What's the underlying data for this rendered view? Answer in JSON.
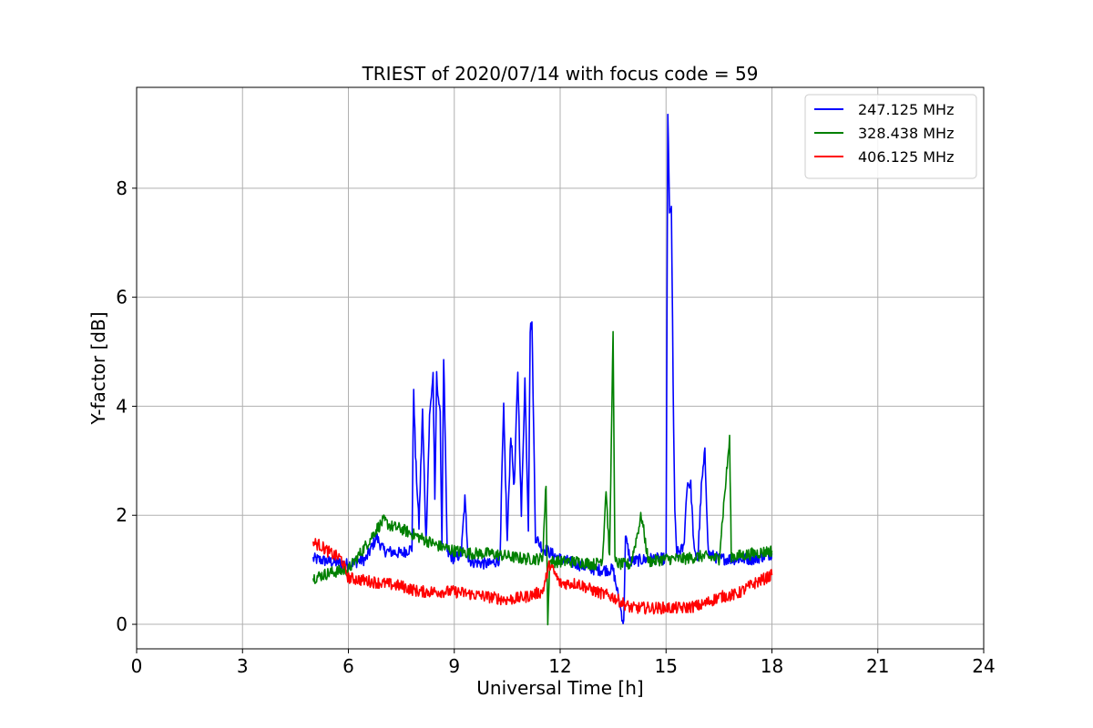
{
  "chart_data": {
    "type": "line",
    "title": "TRIEST of 2020/07/14 with focus code = 59",
    "xlabel": "Universal Time [h]",
    "ylabel": "Y-factor [dB]",
    "xlim": [
      0,
      24
    ],
    "ylim": [
      -0.45,
      9.85
    ],
    "x_ticks": [
      0,
      3,
      6,
      9,
      12,
      15,
      18,
      21,
      24
    ],
    "y_ticks": [
      0,
      2,
      4,
      6,
      8
    ],
    "grid": true,
    "legend_position": "top-right",
    "series": [
      {
        "name": "247.125 MHz",
        "color": "#0000ff",
        "x": [
          5.0,
          5.5,
          6.0,
          6.5,
          6.8,
          7.0,
          7.5,
          7.8,
          7.85,
          7.9,
          8.0,
          8.1,
          8.2,
          8.3,
          8.4,
          8.45,
          8.5,
          8.6,
          8.65,
          8.7,
          8.8,
          9.0,
          9.2,
          9.3,
          9.4,
          9.5,
          10.0,
          10.3,
          10.35,
          10.4,
          10.5,
          10.6,
          10.7,
          10.8,
          10.9,
          11.0,
          11.1,
          11.15,
          11.2,
          11.3,
          11.5,
          12.0,
          12.5,
          13.0,
          13.5,
          13.8,
          13.85,
          14.0,
          14.5,
          15.0,
          15.05,
          15.1,
          15.15,
          15.2,
          15.25,
          15.3,
          15.5,
          15.6,
          15.7,
          15.8,
          15.9,
          16.0,
          16.1,
          16.2,
          16.5,
          17.0,
          17.5,
          18.0
        ],
        "y": [
          1.2,
          1.15,
          1.1,
          1.2,
          1.6,
          1.35,
          1.3,
          1.4,
          4.35,
          3.1,
          1.8,
          3.9,
          1.5,
          3.8,
          4.6,
          2.2,
          4.55,
          3.8,
          1.5,
          4.9,
          1.3,
          1.2,
          1.3,
          2.3,
          1.2,
          1.15,
          1.1,
          1.2,
          2.8,
          3.95,
          1.5,
          3.5,
          2.5,
          4.65,
          2.0,
          4.5,
          1.8,
          5.4,
          5.55,
          1.6,
          1.4,
          1.2,
          1.1,
          1.0,
          1.0,
          0.0,
          1.6,
          1.15,
          1.2,
          1.2,
          9.4,
          7.5,
          7.7,
          4.4,
          2.0,
          1.3,
          1.4,
          2.6,
          2.55,
          1.3,
          1.2,
          2.5,
          3.15,
          1.3,
          1.2,
          1.2,
          1.2,
          1.3
        ]
      },
      {
        "name": "328.438 MHz",
        "color": "#008000",
        "x": [
          5.0,
          5.5,
          6.0,
          6.5,
          6.8,
          7.0,
          7.2,
          7.5,
          8.0,
          8.5,
          9.0,
          9.5,
          10.0,
          10.5,
          11.0,
          11.5,
          11.6,
          11.65,
          11.7,
          12.0,
          12.5,
          13.0,
          13.2,
          13.3,
          13.4,
          13.5,
          13.55,
          13.7,
          14.0,
          14.3,
          14.5,
          15.0,
          15.5,
          16.0,
          16.5,
          16.8,
          16.85,
          17.0,
          17.5,
          18.0
        ],
        "y": [
          0.85,
          0.95,
          1.0,
          1.45,
          1.75,
          1.9,
          1.8,
          1.75,
          1.6,
          1.45,
          1.35,
          1.3,
          1.3,
          1.25,
          1.2,
          1.2,
          2.6,
          0.0,
          1.15,
          1.15,
          1.15,
          1.1,
          1.2,
          2.5,
          1.2,
          5.45,
          1.15,
          1.1,
          1.1,
          2.0,
          1.15,
          1.2,
          1.2,
          1.25,
          1.2,
          3.4,
          1.25,
          1.25,
          1.3,
          1.35
        ]
      },
      {
        "name": "406.125 MHz",
        "color": "#ff0000",
        "x": [
          5.0,
          5.2,
          5.5,
          5.8,
          6.0,
          6.5,
          7.0,
          7.5,
          8.0,
          8.5,
          9.0,
          9.5,
          10.0,
          10.5,
          11.0,
          11.5,
          11.7,
          12.0,
          12.5,
          13.0,
          13.5,
          14.0,
          14.5,
          15.0,
          15.5,
          16.0,
          16.5,
          17.0,
          17.5,
          18.0
        ],
        "y": [
          1.5,
          1.45,
          1.3,
          1.2,
          0.85,
          0.8,
          0.75,
          0.7,
          0.6,
          0.6,
          0.6,
          0.55,
          0.5,
          0.45,
          0.5,
          0.6,
          1.1,
          0.75,
          0.75,
          0.6,
          0.5,
          0.3,
          0.3,
          0.3,
          0.3,
          0.35,
          0.5,
          0.55,
          0.75,
          0.9
        ]
      }
    ]
  }
}
